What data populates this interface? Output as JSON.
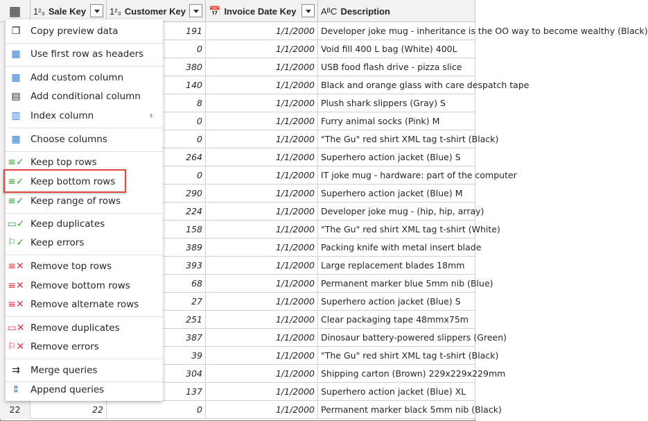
{
  "columns": [
    {
      "type": "1²₃",
      "name": "Sale Key"
    },
    {
      "type": "1²₃",
      "name": "Customer Key"
    },
    {
      "type": "calendar-icon",
      "name": "Invoice Date Key"
    },
    {
      "type": "AᴮC",
      "name": "Description"
    }
  ],
  "rows": [
    {
      "n": "",
      "sale": "",
      "cust": "191",
      "date": "1/1/2000",
      "desc": "Developer joke mug - inheritance is the OO way to become wealthy (Black)"
    },
    {
      "n": "",
      "sale": "",
      "cust": "0",
      "date": "1/1/2000",
      "desc": "Void fill 400 L bag (White) 400L"
    },
    {
      "n": "",
      "sale": "",
      "cust": "380",
      "date": "1/1/2000",
      "desc": "USB food flash drive - pizza slice"
    },
    {
      "n": "",
      "sale": "",
      "cust": "140",
      "date": "1/1/2000",
      "desc": "Black and orange glass with care despatch tape"
    },
    {
      "n": "",
      "sale": "",
      "cust": "8",
      "date": "1/1/2000",
      "desc": "Plush shark slippers (Gray) S"
    },
    {
      "n": "",
      "sale": "",
      "cust": "0",
      "date": "1/1/2000",
      "desc": "Furry animal socks (Pink) M"
    },
    {
      "n": "",
      "sale": "",
      "cust": "0",
      "date": "1/1/2000",
      "desc": "\"The Gu\" red shirt XML tag t-shirt (Black)"
    },
    {
      "n": "",
      "sale": "",
      "cust": "264",
      "date": "1/1/2000",
      "desc": "Superhero action jacket (Blue) S"
    },
    {
      "n": "",
      "sale": "",
      "cust": "0",
      "date": "1/1/2000",
      "desc": "IT joke mug - hardware: part of the computer"
    },
    {
      "n": "",
      "sale": "",
      "cust": "290",
      "date": "1/1/2000",
      "desc": "Superhero action jacket (Blue) M"
    },
    {
      "n": "",
      "sale": "",
      "cust": "224",
      "date": "1/1/2000",
      "desc": "Developer joke mug - (hip, hip, array)"
    },
    {
      "n": "",
      "sale": "",
      "cust": "158",
      "date": "1/1/2000",
      "desc": "\"The Gu\" red shirt XML tag t-shirt (White)"
    },
    {
      "n": "",
      "sale": "",
      "cust": "389",
      "date": "1/1/2000",
      "desc": "Packing knife with metal insert blade"
    },
    {
      "n": "",
      "sale": "",
      "cust": "393",
      "date": "1/1/2000",
      "desc": "Large replacement blades 18mm"
    },
    {
      "n": "",
      "sale": "",
      "cust": "68",
      "date": "1/1/2000",
      "desc": "Permanent marker blue 5mm nib (Blue)"
    },
    {
      "n": "",
      "sale": "",
      "cust": "27",
      "date": "1/1/2000",
      "desc": "Superhero action jacket (Blue) S"
    },
    {
      "n": "",
      "sale": "",
      "cust": "251",
      "date": "1/1/2000",
      "desc": "Clear packaging tape 48mmx75m"
    },
    {
      "n": "",
      "sale": "",
      "cust": "387",
      "date": "1/1/2000",
      "desc": "Dinosaur battery-powered slippers (Green)"
    },
    {
      "n": "",
      "sale": "",
      "cust": "39",
      "date": "1/1/2000",
      "desc": "\"The Gu\" red shirt XML tag t-shirt (Black)"
    },
    {
      "n": "",
      "sale": "",
      "cust": "304",
      "date": "1/1/2000",
      "desc": "Shipping carton (Brown) 229x229x229mm"
    },
    {
      "n": "",
      "sale": "",
      "cust": "137",
      "date": "1/1/2000",
      "desc": "Superhero action jacket (Blue) XL"
    },
    {
      "n": "22",
      "sale": "22",
      "cust": "0",
      "date": "1/1/2000",
      "desc": "Permanent marker black 5mm nib (Black)"
    }
  ],
  "menu": [
    {
      "label": "Copy preview data",
      "icon": "copy-icon"
    },
    {
      "label": "Use first row as headers",
      "icon": "table-headers-icon"
    },
    {
      "label": "Add custom column",
      "icon": "custom-column-icon"
    },
    {
      "label": "Add conditional column",
      "icon": "conditional-column-icon"
    },
    {
      "label": "Index column",
      "icon": "index-column-icon",
      "submenu": true
    },
    {
      "label": "Choose columns",
      "icon": "choose-columns-icon"
    },
    {
      "label": "Keep top rows",
      "icon": "keep-top-rows-icon"
    },
    {
      "label": "Keep bottom rows",
      "icon": "keep-bottom-rows-icon",
      "highlighted": true
    },
    {
      "label": "Keep range of rows",
      "icon": "keep-range-icon"
    },
    {
      "label": "Keep duplicates",
      "icon": "keep-duplicates-icon"
    },
    {
      "label": "Keep errors",
      "icon": "keep-errors-icon"
    },
    {
      "label": "Remove top rows",
      "icon": "remove-top-rows-icon"
    },
    {
      "label": "Remove bottom rows",
      "icon": "remove-bottom-rows-icon"
    },
    {
      "label": "Remove alternate rows",
      "icon": "remove-alternate-rows-icon"
    },
    {
      "label": "Remove duplicates",
      "icon": "remove-duplicates-icon"
    },
    {
      "label": "Remove errors",
      "icon": "remove-errors-icon"
    },
    {
      "label": "Merge queries",
      "icon": "merge-queries-icon"
    },
    {
      "label": "Append queries",
      "icon": "append-queries-icon"
    }
  ],
  "colors": {
    "highlight": "#e8473d",
    "accent": "#2b7cd3",
    "check": "#3fa33f",
    "remove": "#e0303a"
  }
}
